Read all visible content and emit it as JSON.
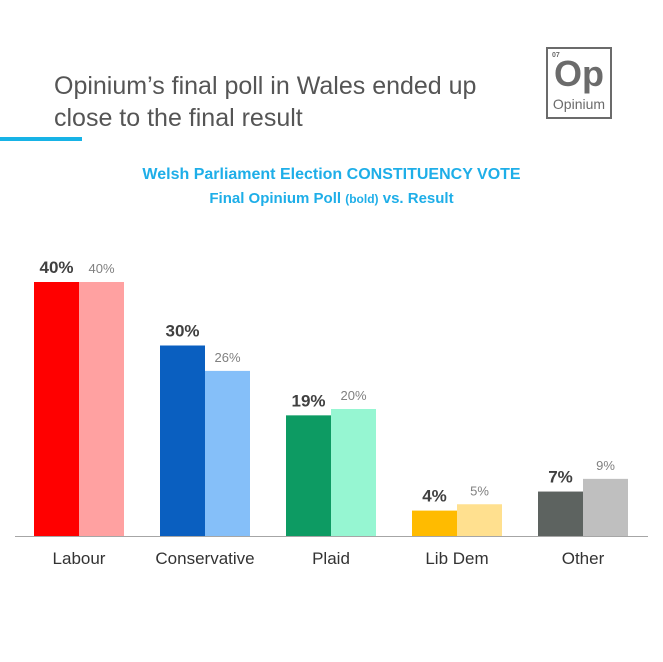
{
  "header": {
    "headline_line1": "Opinium’s final poll in Wales ended up",
    "headline_line2": "close to the final result",
    "logo": {
      "number": "07",
      "symbol": "Op",
      "name": "Opinium"
    }
  },
  "colors": {
    "accent": "#17b3e6",
    "title": "#1eaee8"
  },
  "chart_data": {
    "type": "bar",
    "title": "Welsh Parliament Election CONSTITUENCY VOTE",
    "subtitle_main": "Final Opinium Poll",
    "subtitle_note": "(bold)",
    "subtitle_tail": "vs. Result",
    "categories": [
      "Labour",
      "Conservative",
      "Plaid",
      "Lib Dem",
      "Other"
    ],
    "series": [
      {
        "values": [
          40,
          30,
          19,
          4,
          7
        ],
        "labels": [
          "40%",
          "30%",
          "19%",
          "4%",
          "7%"
        ],
        "label_style": "bold",
        "colors": [
          "#ff0000",
          "#0a5fc0",
          "#0d9b63",
          "#ffbb00",
          "#5d6360"
        ]
      },
      {
        "values": [
          40,
          26,
          20,
          5,
          9
        ],
        "labels": [
          "40%",
          "26%",
          "20%",
          "5%",
          "9%"
        ],
        "label_style": "normal",
        "colors": [
          "#ffa1a1",
          "#85bff9",
          "#96f6d2",
          "#ffe08f",
          "#bfbfbf"
        ]
      }
    ],
    "ylim": [
      0,
      40
    ],
    "grid": false
  }
}
